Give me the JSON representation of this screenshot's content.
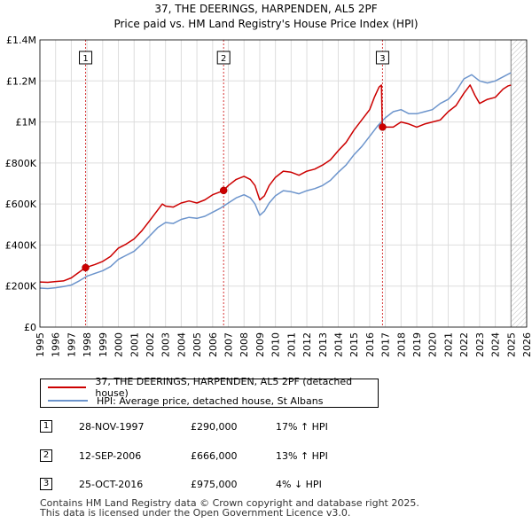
{
  "chart_data": {
    "type": "line",
    "title": "37, THE DEERINGS, HARPENDEN, AL5 2PF",
    "subtitle": "Price paid vs. HM Land Registry's House Price Index (HPI)",
    "xlabel": "",
    "ylabel": "",
    "xlim": [
      1995,
      2026
    ],
    "ylim": [
      0,
      1400000
    ],
    "x_ticks": [
      1995,
      1996,
      1997,
      1998,
      1999,
      2000,
      2001,
      2002,
      2003,
      2004,
      2005,
      2006,
      2007,
      2008,
      2009,
      2010,
      2011,
      2012,
      2013,
      2014,
      2015,
      2016,
      2017,
      2018,
      2019,
      2020,
      2021,
      2022,
      2023,
      2024,
      2025,
      2026
    ],
    "y_ticks": [
      {
        "value": 0,
        "label": "£0"
      },
      {
        "value": 200000,
        "label": "£200K"
      },
      {
        "value": 400000,
        "label": "£400K"
      },
      {
        "value": 600000,
        "label": "£600K"
      },
      {
        "value": 800000,
        "label": "£800K"
      },
      {
        "value": 1000000,
        "label": "£1M"
      },
      {
        "value": 1200000,
        "label": "£1.2M"
      },
      {
        "value": 1400000,
        "label": "£1.4M"
      }
    ],
    "grid": true,
    "shaded_region": {
      "from": 2025.0,
      "to": 2026.0,
      "note": "hatched future period"
    },
    "series": [
      {
        "name": "37, THE DEERINGS, HARPENDEN, AL5 2PF (detached house)",
        "color": "#cc0000",
        "x": [
          1995.0,
          1995.5,
          1996.0,
          1996.5,
          1997.0,
          1997.5,
          1997.9,
          1998.5,
          1999.0,
          1999.5,
          2000.0,
          2000.5,
          2001.0,
          2001.5,
          2002.0,
          2002.5,
          2002.8,
          2003.0,
          2003.5,
          2004.0,
          2004.5,
          2005.0,
          2005.5,
          2006.0,
          2006.5,
          2006.7,
          2007.0,
          2007.5,
          2008.0,
          2008.4,
          2008.7,
          2009.0,
          2009.3,
          2009.6,
          2010.0,
          2010.5,
          2011.0,
          2011.5,
          2012.0,
          2012.5,
          2013.0,
          2013.5,
          2014.0,
          2014.5,
          2015.0,
          2015.5,
          2016.0,
          2016.3,
          2016.6,
          2016.75,
          2016.8,
          2017.0,
          2017.5,
          2018.0,
          2018.5,
          2019.0,
          2019.5,
          2020.0,
          2020.5,
          2021.0,
          2021.5,
          2022.0,
          2022.4,
          2022.7,
          2023.0,
          2023.5,
          2024.0,
          2024.5,
          2024.8,
          2025.0
        ],
        "y": [
          220000,
          218000,
          222000,
          225000,
          240000,
          268000,
          290000,
          305000,
          320000,
          345000,
          385000,
          405000,
          430000,
          470000,
          520000,
          570000,
          600000,
          590000,
          585000,
          605000,
          615000,
          605000,
          620000,
          645000,
          660000,
          666000,
          690000,
          720000,
          735000,
          720000,
          690000,
          620000,
          640000,
          690000,
          730000,
          760000,
          755000,
          740000,
          760000,
          770000,
          790000,
          815000,
          860000,
          900000,
          960000,
          1010000,
          1060000,
          1120000,
          1170000,
          1180000,
          990000,
          975000,
          975000,
          1000000,
          990000,
          975000,
          990000,
          1000000,
          1010000,
          1050000,
          1080000,
          1140000,
          1180000,
          1130000,
          1090000,
          1110000,
          1120000,
          1160000,
          1175000,
          1180000
        ]
      },
      {
        "name": "HPI: Average price, detached house, St Albans",
        "color": "#6c94cc",
        "x": [
          1995.0,
          1995.5,
          1996.0,
          1996.5,
          1997.0,
          1997.5,
          1998.0,
          1998.5,
          1999.0,
          1999.5,
          2000.0,
          2000.5,
          2001.0,
          2001.5,
          2002.0,
          2002.5,
          2003.0,
          2003.5,
          2004.0,
          2004.5,
          2005.0,
          2005.5,
          2006.0,
          2006.5,
          2007.0,
          2007.5,
          2008.0,
          2008.4,
          2008.7,
          2009.0,
          2009.3,
          2009.6,
          2010.0,
          2010.5,
          2011.0,
          2011.5,
          2012.0,
          2012.5,
          2013.0,
          2013.5,
          2014.0,
          2014.5,
          2015.0,
          2015.5,
          2016.0,
          2016.5,
          2017.0,
          2017.5,
          2018.0,
          2018.5,
          2019.0,
          2019.5,
          2020.0,
          2020.5,
          2021.0,
          2021.5,
          2022.0,
          2022.5,
          2023.0,
          2023.5,
          2024.0,
          2024.5,
          2025.0
        ],
        "y": [
          190000,
          188000,
          192000,
          198000,
          205000,
          225000,
          248000,
          262000,
          275000,
          295000,
          330000,
          350000,
          370000,
          405000,
          445000,
          485000,
          510000,
          505000,
          525000,
          535000,
          530000,
          540000,
          560000,
          580000,
          605000,
          630000,
          645000,
          630000,
          600000,
          545000,
          565000,
          605000,
          640000,
          665000,
          660000,
          650000,
          665000,
          675000,
          690000,
          715000,
          755000,
          790000,
          840000,
          880000,
          930000,
          980000,
          1020000,
          1050000,
          1060000,
          1040000,
          1040000,
          1050000,
          1060000,
          1090000,
          1110000,
          1150000,
          1210000,
          1230000,
          1200000,
          1190000,
          1200000,
          1220000,
          1240000
        ]
      }
    ],
    "sales": [
      {
        "num": "1",
        "x": 1997.91,
        "value": 290000
      },
      {
        "num": "2",
        "x": 2006.7,
        "value": 666000
      },
      {
        "num": "3",
        "x": 2016.82,
        "value": 975000
      }
    ]
  },
  "legend": {
    "property_label": "37, THE DEERINGS, HARPENDEN, AL5 2PF (detached house)",
    "hpi_label": "HPI: Average price, detached house, St Albans"
  },
  "sales_table": [
    {
      "num": "1",
      "date": "28-NOV-1997",
      "price": "£290,000",
      "hpi": "17% ↑ HPI"
    },
    {
      "num": "2",
      "date": "12-SEP-2006",
      "price": "£666,000",
      "hpi": "13% ↑ HPI"
    },
    {
      "num": "3",
      "date": "25-OCT-2016",
      "price": "£975,000",
      "hpi": "4% ↓ HPI"
    }
  ],
  "footer": {
    "line1": "Contains HM Land Registry data © Crown copyright and database right 2025.",
    "line2": "This data is licensed under the Open Government Licence v3.0."
  },
  "colors": {
    "property": "#cc0000",
    "hpi": "#6c94cc",
    "grid": "#dddddd",
    "vline": "#cc0000"
  }
}
